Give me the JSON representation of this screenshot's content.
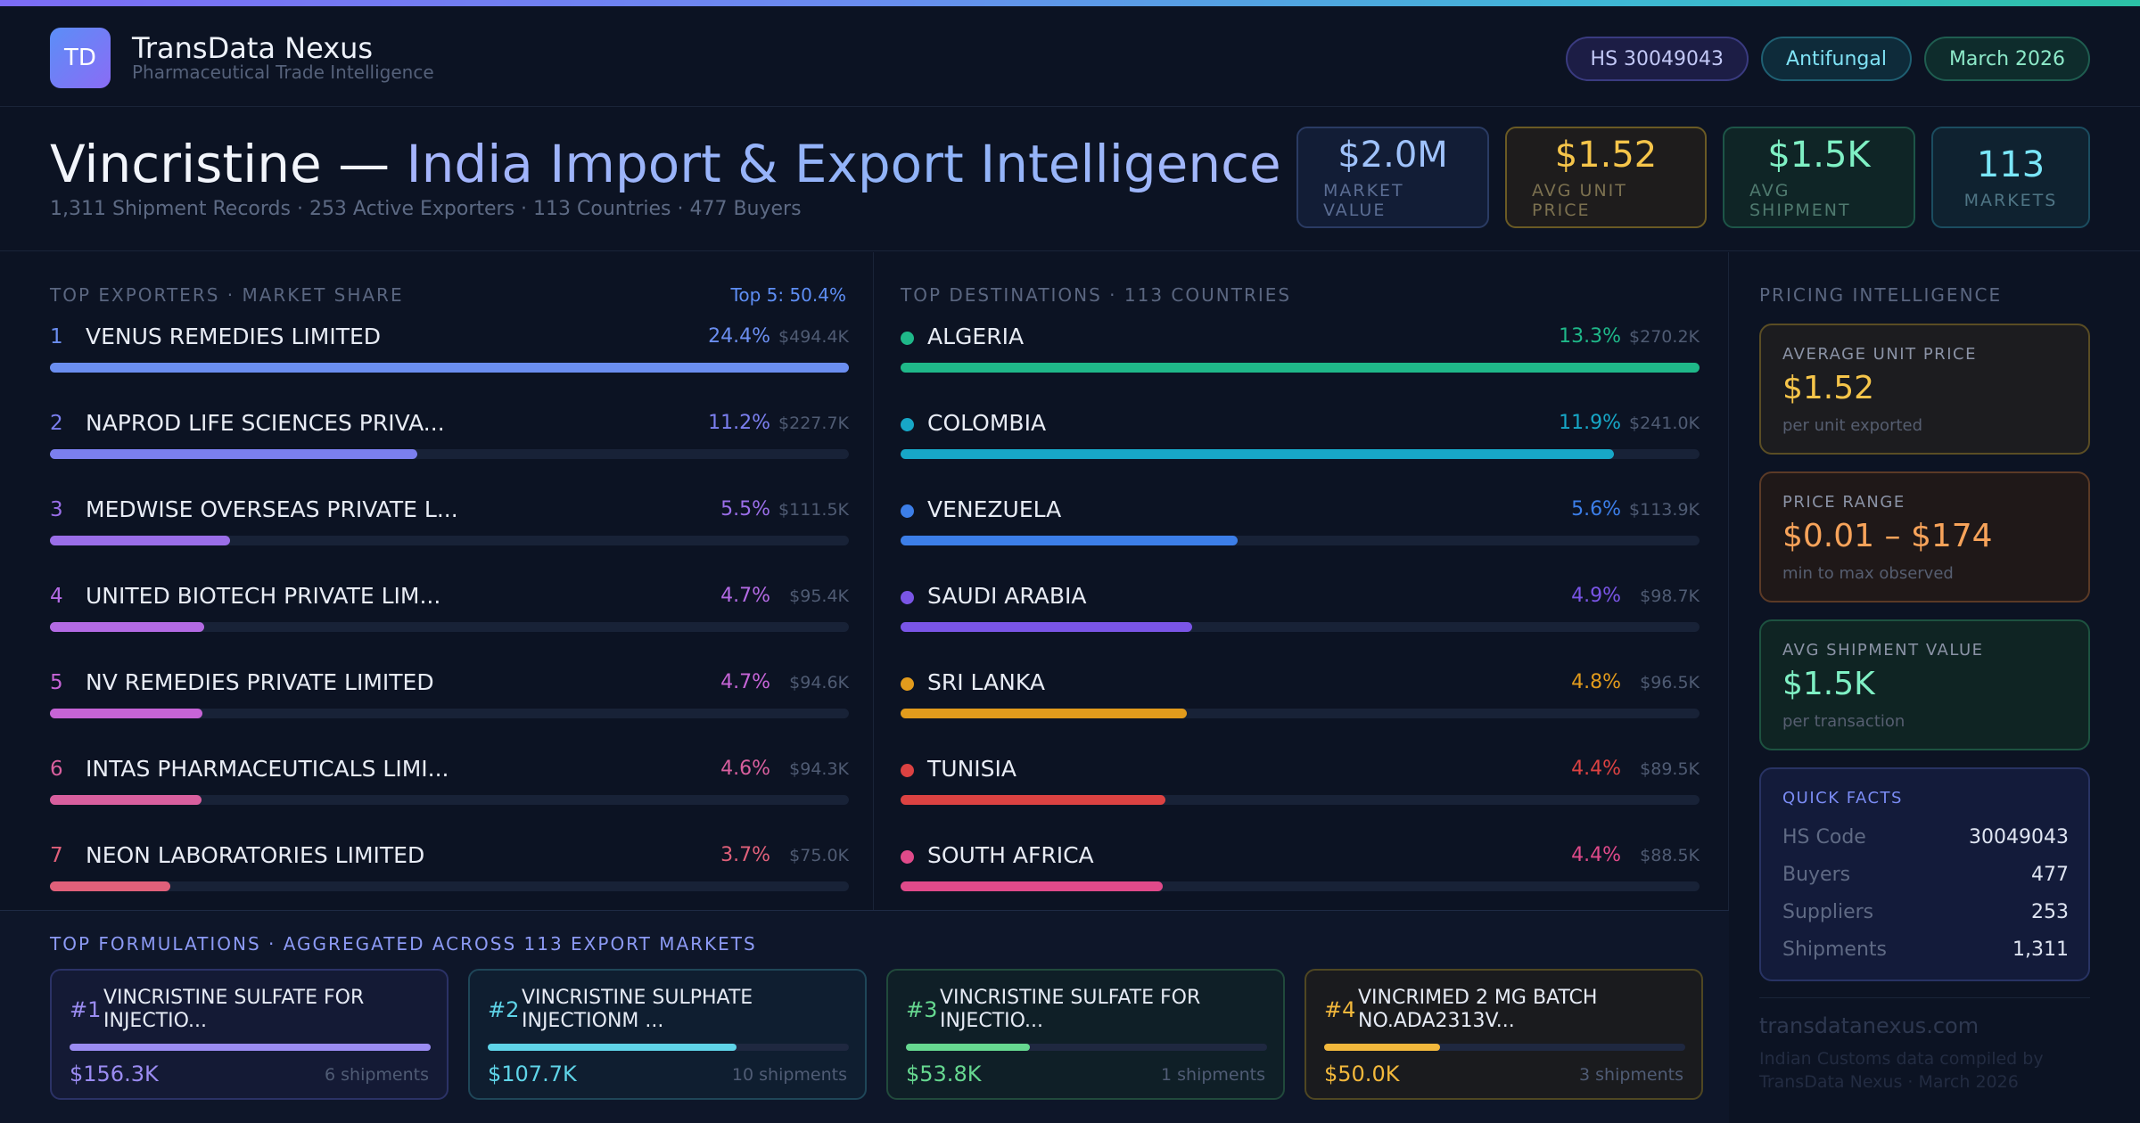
{
  "brand": {
    "logo_text": "TD",
    "name": "TransData Nexus",
    "tagline": "Pharmaceutical Trade Intelligence"
  },
  "tags": {
    "hs": "HS 30049043",
    "category": "Antifungal",
    "date": "March 2026"
  },
  "title": {
    "drug": "Vincristine —",
    "rest": "India Import & Export Intelligence",
    "subtitle": "1,311 Shipment Records · 253 Active Exporters · 113 Countries · 477 Buyers"
  },
  "kpis": [
    {
      "value": "$2.0M",
      "label": "MARKET VALUE"
    },
    {
      "value": "$1.52",
      "label": "AVG UNIT PRICE"
    },
    {
      "value": "$1.5K",
      "label": "AVG SHIPMENT"
    },
    {
      "value": "113",
      "label": "MARKETS"
    }
  ],
  "exporters": {
    "heading": "TOP EXPORTERS · MARKET SHARE",
    "top5": "Top 5: 50.4%",
    "rows": [
      {
        "rank": "1",
        "name": "VENUS REMEDIES LIMITED",
        "pct": "24.4%",
        "value": "$494.4K",
        "share": 100,
        "color": "#6b8ef0"
      },
      {
        "rank": "2",
        "name": "NAPROD LIFE SCIENCES PRIVA...",
        "pct": "11.2%",
        "value": "$227.7K",
        "share": 46,
        "color": "#7b7fef"
      },
      {
        "rank": "3",
        "name": "MEDWISE OVERSEAS PRIVATE L...",
        "pct": "5.5%",
        "value": "$111.5K",
        "share": 22.5,
        "color": "#9a6ee8"
      },
      {
        "rank": "4",
        "name": "UNITED BIOTECH PRIVATE LIM...",
        "pct": "4.7%",
        "value": "$95.4K",
        "share": 19.3,
        "color": "#b36ae3"
      },
      {
        "rank": "5",
        "name": "NV REMEDIES PRIVATE LIMITED",
        "pct": "4.7%",
        "value": "$94.6K",
        "share": 19.1,
        "color": "#c664d6"
      },
      {
        "rank": "6",
        "name": "INTAS PHARMACEUTICALS LIMI...",
        "pct": "4.6%",
        "value": "$94.3K",
        "share": 19.0,
        "color": "#d85f9e"
      },
      {
        "rank": "7",
        "name": "NEON LABORATORIES LIMITED",
        "pct": "3.7%",
        "value": "$75.0K",
        "share": 15.1,
        "color": "#e0607a"
      }
    ]
  },
  "destinations": {
    "heading": "TOP DESTINATIONS · 113 COUNTRIES",
    "rows": [
      {
        "name": "ALGERIA",
        "pct": "13.3%",
        "value": "$270.2K",
        "share": 100,
        "color": "#1fb889"
      },
      {
        "name": "COLOMBIA",
        "pct": "11.9%",
        "value": "$241.0K",
        "share": 89.3,
        "color": "#17a7c7"
      },
      {
        "name": "VENEZUELA",
        "pct": "5.6%",
        "value": "$113.9K",
        "share": 42.2,
        "color": "#3c7ee8"
      },
      {
        "name": "SAUDI ARABIA",
        "pct": "4.9%",
        "value": "$98.7K",
        "share": 36.5,
        "color": "#7a55e6"
      },
      {
        "name": "SRI LANKA",
        "pct": "4.8%",
        "value": "$96.5K",
        "share": 35.8,
        "color": "#e29b1c"
      },
      {
        "name": "TUNISIA",
        "pct": "4.4%",
        "value": "$89.5K",
        "share": 33.2,
        "color": "#dc4242"
      },
      {
        "name": "SOUTH AFRICA",
        "pct": "4.4%",
        "value": "$88.5K",
        "share": 32.8,
        "color": "#e04a8a"
      }
    ]
  },
  "formulations": {
    "heading": "TOP FORMULATIONS · AGGREGATED ACROSS 113 EXPORT MARKETS",
    "cards": [
      {
        "rank": "#1",
        "name": "VINCRISTINE SULFATE FOR INJECTIO...",
        "value": "$156.3K",
        "shipments": "6 shipments",
        "share": 100,
        "color": "#9b8cf2"
      },
      {
        "rank": "#2",
        "name": "VINCRISTINE SULPHATE INJECTIONM ...",
        "value": "$107.7K",
        "shipments": "10 shipments",
        "share": 68.9,
        "color": "#5fd4e8"
      },
      {
        "rank": "#3",
        "name": "VINCRISTINE SULFATE FOR INJECTIO...",
        "value": "$53.8K",
        "shipments": "1 shipments",
        "share": 34.4,
        "color": "#66d890"
      },
      {
        "rank": "#4",
        "name": "VINCRIMED 2 MG BATCH NO.ADA2313V...",
        "value": "$50.0K",
        "shipments": "3 shipments",
        "share": 32.0,
        "color": "#f2b83c"
      }
    ]
  },
  "pricing": {
    "heading": "PRICING INTELLIGENCE",
    "cards": [
      {
        "label": "AVERAGE UNIT PRICE",
        "value": "$1.52",
        "note": "per unit exported"
      },
      {
        "label": "PRICE RANGE",
        "value": "$0.01 – $174",
        "note": "min to max observed"
      },
      {
        "label": "AVG SHIPMENT VALUE",
        "value": "$1.5K",
        "note": "per transaction"
      }
    ]
  },
  "facts": {
    "title": "QUICK FACTS",
    "rows": [
      {
        "key": "HS Code",
        "value": "30049043"
      },
      {
        "key": "Buyers",
        "value": "477"
      },
      {
        "key": "Suppliers",
        "value": "253"
      },
      {
        "key": "Shipments",
        "value": "1,311"
      }
    ]
  },
  "footer": {
    "site": "transdatanexus.com",
    "note": "Indian Customs data compiled by TransData Nexus · March 2026"
  }
}
